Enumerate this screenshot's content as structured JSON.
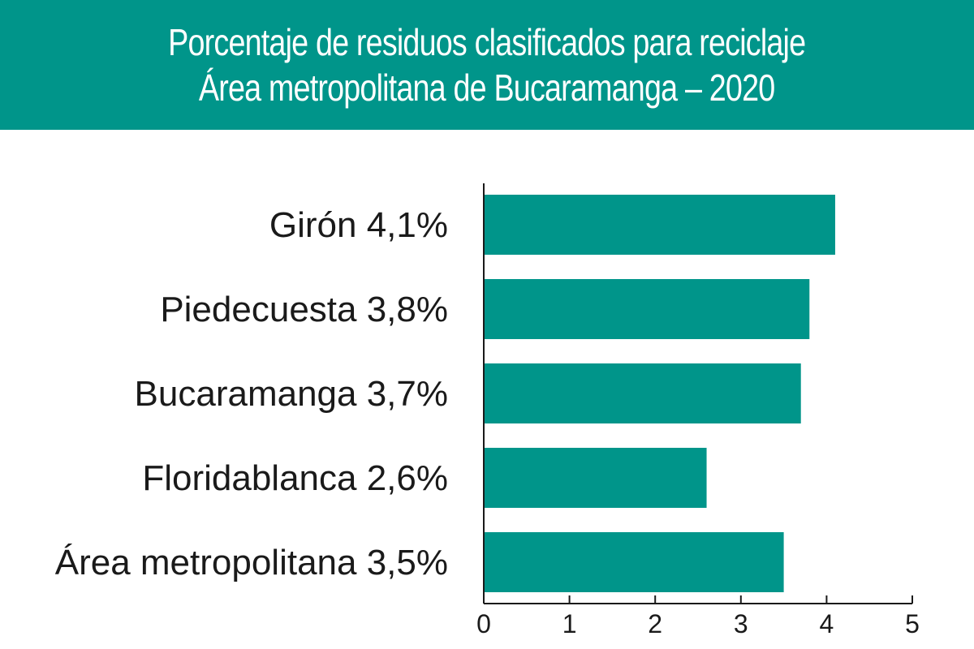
{
  "chart_data": {
    "type": "bar",
    "orientation": "horizontal",
    "title": "Porcentaje de residuos clasificados para reciclaje",
    "subtitle": "Área metropolitana de Bucaramanga – 2020",
    "categories": [
      "Girón 4,1%",
      "Piedecuesta 3,8%",
      "Bucaramanga 3,7%",
      "Floridablanca 2,6%",
      "Área metropolitana 3,5%"
    ],
    "values": [
      4.1,
      3.8,
      3.7,
      2.6,
      3.5
    ],
    "xlim": [
      0,
      5
    ],
    "xticks": [
      "0",
      "1",
      "2",
      "3",
      "4",
      "5"
    ],
    "xlabel": "",
    "ylabel": "",
    "grid": false,
    "colors": {
      "bar": "#00958a",
      "banner": "#00958a",
      "title_text": "#ffffff",
      "axis": "#1a1a1a"
    }
  }
}
